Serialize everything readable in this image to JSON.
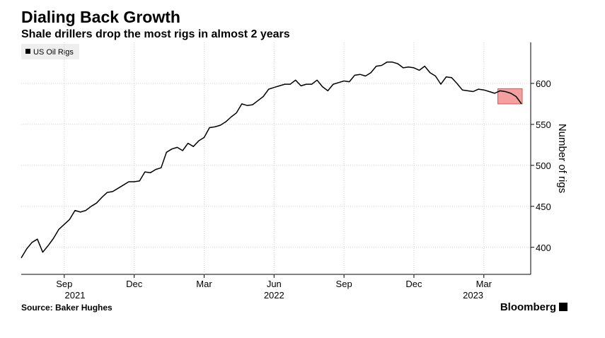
{
  "chart_data": {
    "type": "line",
    "title": "Dialing Back Growth",
    "subtitle": "Shale drillers drop the most rigs in almost 2 years",
    "y_label": "Number of rigs",
    "source": "Source: Baker Hughes",
    "brand": "Bloomberg",
    "categories": [
      null,
      null,
      null,
      null,
      null,
      null,
      null,
      null,
      "Sep",
      null,
      null,
      null,
      null,
      null,
      null,
      null,
      null,
      null,
      null,
      null,
      null,
      "Dec",
      null,
      null,
      null,
      null,
      null,
      null,
      null,
      null,
      null,
      null,
      null,
      null,
      "Mar",
      null,
      null,
      null,
      null,
      null,
      null,
      null,
      null,
      null,
      null,
      null,
      null,
      "Jun",
      null,
      null,
      null,
      null,
      null,
      null,
      null,
      null,
      null,
      null,
      null,
      null,
      "Sep",
      null,
      null,
      null,
      null,
      null,
      null,
      null,
      null,
      null,
      null,
      null,
      null,
      "Dec",
      null,
      null,
      null,
      null,
      null,
      null,
      null,
      null,
      null,
      null,
      null,
      null,
      "Mar",
      null,
      null,
      null,
      null,
      null,
      null,
      null
    ],
    "year_categories": [
      null,
      null,
      null,
      null,
      null,
      null,
      null,
      null,
      null,
      null,
      "2021",
      null,
      null,
      null,
      null,
      null,
      null,
      null,
      null,
      null,
      null,
      null,
      null,
      null,
      null,
      null,
      null,
      null,
      null,
      null,
      null,
      null,
      null,
      null,
      null,
      null,
      null,
      null,
      null,
      null,
      null,
      null,
      null,
      null,
      null,
      null,
      null,
      "2022",
      null,
      null,
      null,
      null,
      null,
      null,
      null,
      null,
      null,
      null,
      null,
      null,
      null,
      null,
      null,
      null,
      null,
      null,
      null,
      null,
      null,
      null,
      null,
      null,
      null,
      null,
      null,
      null,
      null,
      null,
      null,
      null,
      null,
      null,
      null,
      null,
      "2023",
      null,
      null,
      null,
      null,
      null,
      null,
      null,
      null,
      null
    ],
    "series": [
      {
        "name": "US Oil Rigs",
        "color": "#000000",
        "values": [
          387,
          398,
          406,
          410,
          394,
          402,
          411,
          422,
          428,
          434,
          445,
          443,
          445,
          450,
          454,
          461,
          467,
          468,
          472,
          476,
          480,
          480,
          481,
          492,
          491,
          495,
          497,
          516,
          520,
          522,
          518,
          527,
          523,
          530,
          534,
          546,
          547,
          549,
          553,
          559,
          564,
          575,
          573,
          574,
          579,
          584,
          593,
          595,
          597,
          599,
          599,
          604,
          597,
          599,
          599,
          604,
          596,
          591,
          599,
          601,
          603,
          602,
          610,
          611,
          609,
          613,
          621,
          622,
          626,
          626,
          624,
          619,
          620,
          619,
          616,
          621,
          613,
          609,
          599,
          608,
          607,
          600,
          592,
          591,
          590,
          593,
          592,
          590,
          588,
          591,
          590,
          588,
          584,
          575
        ]
      }
    ],
    "highlight": {
      "from_index": 89,
      "color": "#f4a0a0",
      "stroke": "#e05050"
    },
    "ylim": [
      367,
      650
    ],
    "yticks": [
      400,
      450,
      500,
      550,
      600
    ],
    "grid": true
  }
}
